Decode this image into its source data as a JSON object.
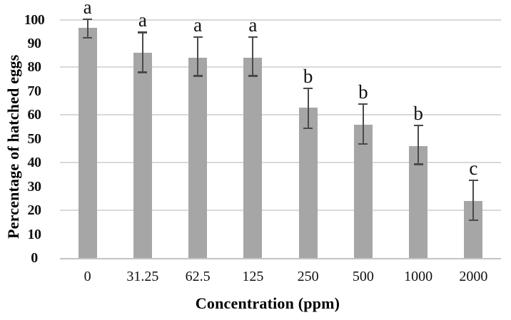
{
  "chart_data": {
    "type": "bar",
    "title": "",
    "xlabel": "Concentration (ppm)",
    "ylabel": "Percentage of hatched eggs",
    "categories": [
      "0",
      "31.25",
      "62.5",
      "125",
      "250",
      "500",
      "1000",
      "2000"
    ],
    "values": [
      96.5,
      86,
      84,
      84,
      63,
      56,
      47,
      24
    ],
    "error_low": [
      92,
      77.5,
      76,
      76,
      54,
      47.5,
      39,
      15.5
    ],
    "error_high": [
      100.5,
      95,
      93,
      93,
      71.5,
      65,
      56,
      33
    ],
    "sig_letters": [
      "a",
      "a",
      "a",
      "a",
      "b",
      "b",
      "b",
      "c"
    ],
    "ylim": [
      0,
      100
    ],
    "ytick_step": 10,
    "gridline_step": 20,
    "grid": "horizontal-only",
    "legend": "none",
    "colors": {
      "bar": "#a6a6a6",
      "error": "#4a4a4a",
      "gridline": "#d9d9d9",
      "axis_line": "#c4c4c4",
      "text": "#111111"
    }
  }
}
